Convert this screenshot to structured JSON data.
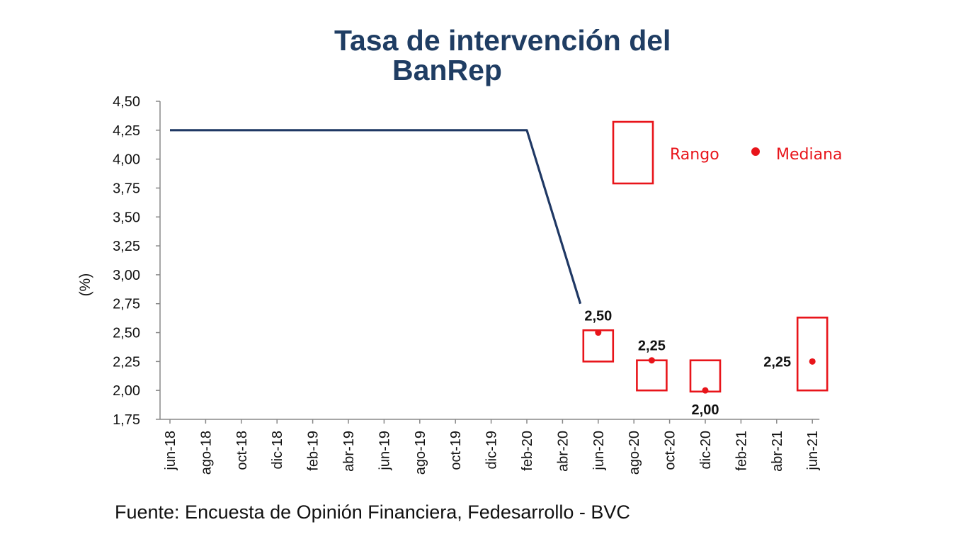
{
  "chart_data": {
    "type": "line",
    "title": "Tasa de intervención del BanRep",
    "title_lines": [
      "Tasa de intervención del",
      "BanRep"
    ],
    "source": "Fuente: Encuesta de Opinión Financiera, Fedesarrollo - BVC",
    "ylabel": "(%)",
    "ylim": [
      1.75,
      4.5
    ],
    "y_ticks": [
      "4,50",
      "4,25",
      "4,00",
      "3,75",
      "3,50",
      "3,25",
      "3,00",
      "2,75",
      "2,50",
      "2,25",
      "2,00",
      "1,75"
    ],
    "y_tick_values": [
      4.5,
      4.25,
      4.0,
      3.75,
      3.5,
      3.25,
      3.0,
      2.75,
      2.5,
      2.25,
      2.0,
      1.75
    ],
    "categories": [
      "jun-18",
      "ago-18",
      "oct-18",
      "dic-18",
      "feb-19",
      "abr-19",
      "jun-19",
      "ago-19",
      "oct-19",
      "dic-19",
      "feb-20",
      "abr-20",
      "jun-20",
      "ago-20",
      "oct-20",
      "dic-20",
      "feb-21",
      "abr-21",
      "jun-21"
    ],
    "series": [
      {
        "name": "",
        "color": "#1f3864",
        "x": [
          "jun-18",
          "feb-20",
          "may-20"
        ],
        "x_index": [
          0,
          10,
          11.5
        ],
        "values": [
          4.25,
          4.25,
          2.75
        ]
      }
    ],
    "expectations": {
      "color": "#e8141a",
      "items": [
        {
          "x_index": 12,
          "low": 2.25,
          "high": 2.52,
          "median": 2.5,
          "label": "2,50",
          "label_pos": "above"
        },
        {
          "x_index": 13.5,
          "low": 2.0,
          "high": 2.26,
          "median": 2.26,
          "label": "2,25",
          "label_pos": "above"
        },
        {
          "x_index": 15,
          "low": 1.99,
          "high": 2.26,
          "median": 2.0,
          "label": "2,00",
          "label_pos": "below"
        },
        {
          "x_index": 18,
          "low": 2.0,
          "high": 2.63,
          "median": 2.25,
          "label": "2,25",
          "label_pos": "left"
        }
      ]
    },
    "legend": {
      "position": "top-right",
      "range_label": "Rango",
      "median_label": "Mediana"
    },
    "grid": false
  }
}
